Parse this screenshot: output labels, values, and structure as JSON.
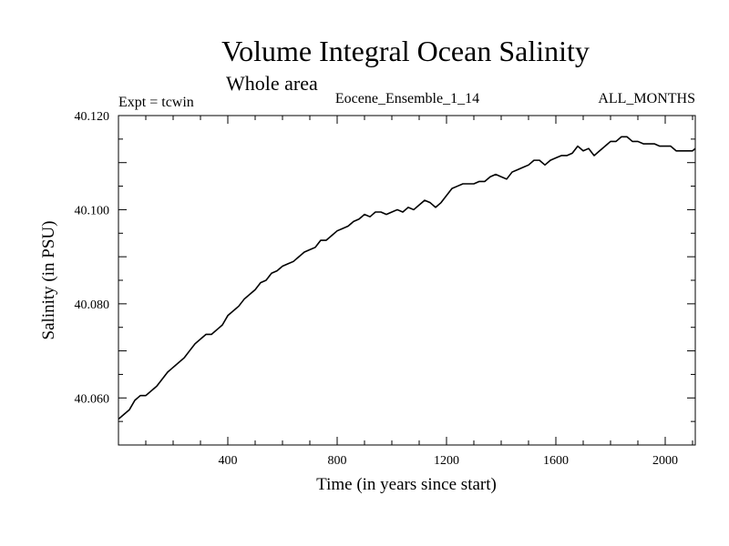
{
  "chart_data": {
    "type": "line",
    "title": "Volume Integral Ocean Salinity",
    "subtitle": "Whole area",
    "header_left": "Expt = tcwin",
    "header_center": "Eocene_Ensemble_1_14",
    "header_right": "ALL_MONTHS",
    "xlabel": "Time (in years since start)",
    "ylabel": "Salinity (in PSU)",
    "xlim": [
      0,
      2110
    ],
    "ylim": [
      40.05,
      40.12
    ],
    "xticks": [
      400,
      800,
      1200,
      1600,
      2000
    ],
    "xtick_labels": [
      "400",
      "800",
      "1200",
      "1600",
      "2000"
    ],
    "yticks": [
      40.06,
      40.08,
      40.1,
      40.12
    ],
    "ytick_labels": [
      "40.060",
      "40.080",
      "40.100",
      "40.120"
    ],
    "grid": false,
    "series": [
      {
        "x": [
          0,
          20,
          40,
          60,
          80,
          100,
          120,
          140,
          160,
          180,
          200,
          220,
          240,
          260,
          280,
          300,
          320,
          340,
          360,
          380,
          400,
          420,
          440,
          460,
          480,
          500,
          520,
          540,
          560,
          580,
          600,
          620,
          640,
          660,
          680,
          700,
          720,
          740,
          760,
          780,
          800,
          820,
          840,
          860,
          880,
          900,
          920,
          940,
          960,
          980,
          1000,
          1020,
          1040,
          1060,
          1080,
          1100,
          1120,
          1140,
          1160,
          1180,
          1200,
          1220,
          1240,
          1260,
          1280,
          1300,
          1320,
          1340,
          1360,
          1380,
          1400,
          1420,
          1440,
          1460,
          1480,
          1500,
          1520,
          1540,
          1560,
          1580,
          1600,
          1620,
          1640,
          1660,
          1680,
          1700,
          1720,
          1740,
          1760,
          1780,
          1800,
          1820,
          1840,
          1860,
          1880,
          1900,
          1920,
          1940,
          1960,
          1980,
          2000,
          2020,
          2040,
          2060,
          2080,
          2100,
          2110
        ],
        "values": [
          40.0555,
          40.0565,
          40.0575,
          40.0595,
          40.0605,
          40.0605,
          40.0615,
          40.0625,
          40.064,
          40.0655,
          40.0665,
          40.0675,
          40.0685,
          40.07,
          40.0715,
          40.0725,
          40.0735,
          40.0735,
          40.0745,
          40.0755,
          40.0775,
          40.0785,
          40.0795,
          40.081,
          40.082,
          40.083,
          40.0845,
          40.085,
          40.0865,
          40.087,
          40.088,
          40.0885,
          40.089,
          40.09,
          40.091,
          40.0915,
          40.092,
          40.0935,
          40.0935,
          40.0945,
          40.0955,
          40.096,
          40.0965,
          40.0975,
          40.098,
          40.099,
          40.0985,
          40.0995,
          40.0995,
          40.099,
          40.0995,
          40.1,
          40.0995,
          40.1005,
          40.1,
          40.101,
          40.102,
          40.1015,
          40.1005,
          40.1015,
          40.103,
          40.1045,
          40.105,
          40.1055,
          40.1055,
          40.1055,
          40.106,
          40.106,
          40.107,
          40.1075,
          40.107,
          40.1065,
          40.108,
          40.1085,
          40.109,
          40.1095,
          40.1105,
          40.1105,
          40.1095,
          40.1105,
          40.111,
          40.1115,
          40.1115,
          40.112,
          40.1135,
          40.1125,
          40.113,
          40.1115,
          40.1125,
          40.1135,
          40.1145,
          40.1145,
          40.1155,
          40.1155,
          40.1145,
          40.1145,
          40.114,
          40.114,
          40.114,
          40.1135,
          40.1135,
          40.1135,
          40.1125,
          40.1125,
          40.1125,
          40.1125,
          40.113
        ]
      }
    ]
  }
}
